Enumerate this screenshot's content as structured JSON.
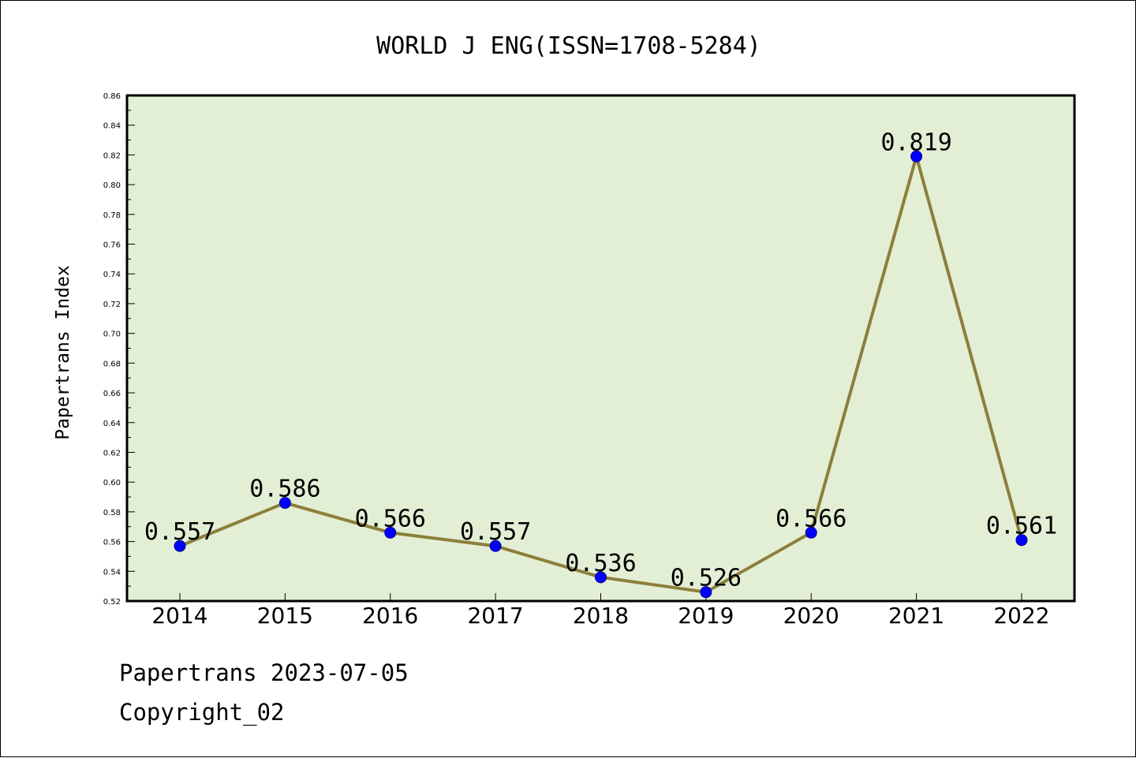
{
  "chart_data": {
    "type": "line",
    "title": "WORLD J ENG(ISSN=1708-5284)",
    "xlabel": "",
    "ylabel": "Papertrans Index",
    "categories": [
      "2014",
      "2015",
      "2016",
      "2017",
      "2018",
      "2019",
      "2020",
      "2021",
      "2022"
    ],
    "series": [
      {
        "values": [
          0.557,
          0.586,
          0.566,
          0.557,
          0.536,
          0.526,
          0.566,
          0.819,
          0.561
        ],
        "data_labels": [
          "0.557",
          "0.586",
          "0.566",
          "0.557",
          "0.536",
          "0.526",
          "0.566",
          "0.819",
          "0.561"
        ]
      }
    ],
    "ylim": [
      0.52,
      0.86
    ],
    "yticks": [
      "0.52",
      "0.54",
      "0.56",
      "0.58",
      "0.60",
      "0.62",
      "0.64",
      "0.66",
      "0.68",
      "0.70",
      "0.72",
      "0.74",
      "0.76",
      "0.78",
      "0.80",
      "0.82",
      "0.84",
      "0.86"
    ],
    "grid": false,
    "colors": {
      "plot_background": "#e2efd5",
      "line": "#8c7f3a",
      "marker": "#0000ff"
    }
  },
  "footer": {
    "line1": "Papertrans 2023-07-05",
    "line2": "Copyright_02"
  }
}
